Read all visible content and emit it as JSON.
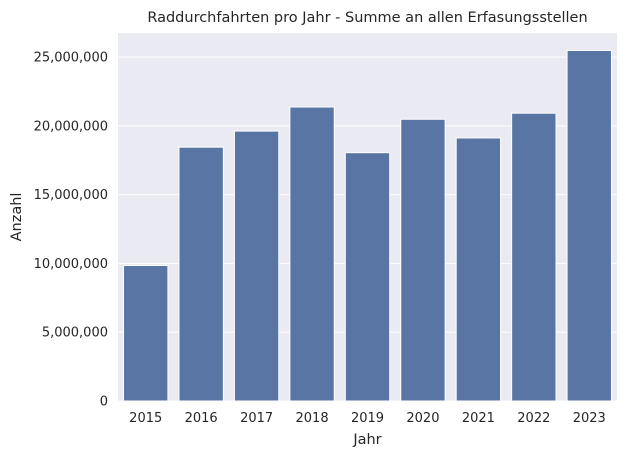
{
  "chart_data": {
    "type": "bar",
    "title": "Raddurchfahrten pro Jahr - Summe an allen Erfasungsstellen",
    "xlabel": "Jahr",
    "ylabel": "Anzahl",
    "categories": [
      "2015",
      "2016",
      "2017",
      "2018",
      "2019",
      "2020",
      "2021",
      "2022",
      "2023"
    ],
    "values": [
      9850000,
      18450000,
      19620000,
      21370000,
      18050000,
      20480000,
      19120000,
      20920000,
      25480000
    ],
    "ylim": [
      0,
      26750000
    ],
    "yticks": [
      0,
      5000000,
      10000000,
      15000000,
      20000000,
      25000000
    ],
    "ytick_labels": [
      "0",
      "5,000,000",
      "10,000,000",
      "15,000,000",
      "20,000,000",
      "25,000,000"
    ],
    "grid": true,
    "legend": "none",
    "colors": {
      "bar": "#5875a4",
      "plot_background": "#eaeaf2",
      "grid": "#ffffff",
      "text": "#262626"
    }
  }
}
